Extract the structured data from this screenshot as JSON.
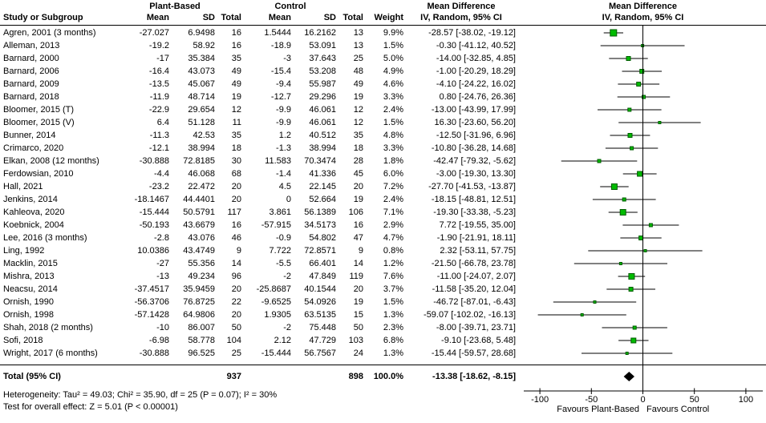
{
  "header": {
    "study_col": "Study or Subgroup",
    "group1": "Plant-Based",
    "group2": "Control",
    "mean": "Mean",
    "sd": "SD",
    "total": "Total",
    "weight": "Weight",
    "md_title": "Mean Difference",
    "md_method": "IV, Random, 95% CI"
  },
  "footnotes": {
    "heterogeneity": "Heterogeneity: Tau² = 49.03; Chi² = 35.90, df = 25 (P = 0.07); I² = 30%",
    "overall_effect": "Test for overall effect: Z = 5.01 (P < 0.00001)"
  },
  "chart_data": {
    "type": "forest",
    "effect_measure": "Mean Difference",
    "model": "IV, Random, 95% CI",
    "xlim": [
      -116,
      117
    ],
    "axis": {
      "ticks": [
        -100,
        -50,
        0,
        50,
        100
      ],
      "favours_left": "Favours Plant-Based",
      "favours_right": "Favours Control"
    },
    "colors": {
      "square": "#00bb00",
      "square_border": "#005c00",
      "diamond": "#000000",
      "line": "#000000"
    },
    "studies": [
      {
        "name": "Agren, 2001 (3 months)",
        "pb_mean": "-27.027",
        "pb_sd": "6.9498",
        "pb_total": "16",
        "c_mean": "1.5444",
        "c_sd": "16.2162",
        "c_total": "13",
        "weight": "9.9%",
        "ci": "-28.57 [-38.02, -19.12]",
        "est": -28.57,
        "lo": -38.02,
        "hi": -19.12,
        "w": 9.9
      },
      {
        "name": "Alleman, 2013",
        "pb_mean": "-19.2",
        "pb_sd": "58.92",
        "pb_total": "16",
        "c_mean": "-18.9",
        "c_sd": "53.091",
        "c_total": "13",
        "weight": "1.5%",
        "ci": "-0.30 [-41.12, 40.52]",
        "est": -0.3,
        "lo": -41.12,
        "hi": 40.52,
        "w": 1.5
      },
      {
        "name": "Barnard, 2000",
        "pb_mean": "-17",
        "pb_sd": "35.384",
        "pb_total": "35",
        "c_mean": "-3",
        "c_sd": "37.643",
        "c_total": "25",
        "weight": "5.0%",
        "ci": "-14.00 [-32.85, 4.85]",
        "est": -14.0,
        "lo": -32.85,
        "hi": 4.85,
        "w": 5.0
      },
      {
        "name": "Barnard, 2006",
        "pb_mean": "-16.4",
        "pb_sd": "43.073",
        "pb_total": "49",
        "c_mean": "-15.4",
        "c_sd": "53.208",
        "c_total": "48",
        "weight": "4.9%",
        "ci": "-1.00 [-20.29, 18.29]",
        "est": -1.0,
        "lo": -20.29,
        "hi": 18.29,
        "w": 4.9
      },
      {
        "name": "Barnard, 2009",
        "pb_mean": "-13.5",
        "pb_sd": "45.067",
        "pb_total": "49",
        "c_mean": "-9.4",
        "c_sd": "55.987",
        "c_total": "49",
        "weight": "4.6%",
        "ci": "-4.10 [-24.22, 16.02]",
        "est": -4.1,
        "lo": -24.22,
        "hi": 16.02,
        "w": 4.6
      },
      {
        "name": "Barnard, 2018",
        "pb_mean": "-11.9",
        "pb_sd": "48.714",
        "pb_total": "19",
        "c_mean": "-12.7",
        "c_sd": "29.296",
        "c_total": "19",
        "weight": "3.3%",
        "ci": "0.80 [-24.76, 26.36]",
        "est": 0.8,
        "lo": -24.76,
        "hi": 26.36,
        "w": 3.3
      },
      {
        "name": "Bloomer, 2015 (T)",
        "pb_mean": "-22.9",
        "pb_sd": "29.654",
        "pb_total": "12",
        "c_mean": "-9.9",
        "c_sd": "46.061",
        "c_total": "12",
        "weight": "2.4%",
        "ci": "-13.00 [-43.99, 17.99]",
        "est": -13.0,
        "lo": -43.99,
        "hi": 17.99,
        "w": 2.4
      },
      {
        "name": "Bloomer, 2015 (V)",
        "pb_mean": "6.4",
        "pb_sd": "51.128",
        "pb_total": "11",
        "c_mean": "-9.9",
        "c_sd": "46.061",
        "c_total": "12",
        "weight": "1.5%",
        "ci": "16.30 [-23.60, 56.20]",
        "est": 16.3,
        "lo": -23.6,
        "hi": 56.2,
        "w": 1.5
      },
      {
        "name": "Bunner, 2014",
        "pb_mean": "-11.3",
        "pb_sd": "42.53",
        "pb_total": "35",
        "c_mean": "1.2",
        "c_sd": "40.512",
        "c_total": "35",
        "weight": "4.8%",
        "ci": "-12.50 [-31.96, 6.96]",
        "est": -12.5,
        "lo": -31.96,
        "hi": 6.96,
        "w": 4.8
      },
      {
        "name": "Crimarco, 2020",
        "pb_mean": "-12.1",
        "pb_sd": "38.994",
        "pb_total": "18",
        "c_mean": "-1.3",
        "c_sd": "38.994",
        "c_total": "18",
        "weight": "3.3%",
        "ci": "-10.80 [-36.28, 14.68]",
        "est": -10.8,
        "lo": -36.28,
        "hi": 14.68,
        "w": 3.3
      },
      {
        "name": "Elkan, 2008 (12 months)",
        "pb_mean": "-30.888",
        "pb_sd": "72.8185",
        "pb_total": "30",
        "c_mean": "11.583",
        "c_sd": "70.3474",
        "c_total": "28",
        "weight": "1.8%",
        "ci": "-42.47 [-79.32, -5.62]",
        "est": -42.47,
        "lo": -79.32,
        "hi": -5.62,
        "w": 1.8
      },
      {
        "name": "Ferdowsian, 2010",
        "pb_mean": "-4.4",
        "pb_sd": "46.068",
        "pb_total": "68",
        "c_mean": "-1.4",
        "c_sd": "41.336",
        "c_total": "45",
        "weight": "6.0%",
        "ci": "-3.00 [-19.30, 13.30]",
        "est": -3.0,
        "lo": -19.3,
        "hi": 13.3,
        "w": 6.0
      },
      {
        "name": "Hall, 2021",
        "pb_mean": "-23.2",
        "pb_sd": "22.472",
        "pb_total": "20",
        "c_mean": "4.5",
        "c_sd": "22.145",
        "c_total": "20",
        "weight": "7.2%",
        "ci": "-27.70 [-41.53, -13.87]",
        "est": -27.7,
        "lo": -41.53,
        "hi": -13.87,
        "w": 7.2
      },
      {
        "name": "Jenkins, 2014",
        "pb_mean": "-18.1467",
        "pb_sd": "44.4401",
        "pb_total": "20",
        "c_mean": "0",
        "c_sd": "52.664",
        "c_total": "19",
        "weight": "2.4%",
        "ci": "-18.15 [-48.81, 12.51]",
        "est": -18.15,
        "lo": -48.81,
        "hi": 12.51,
        "w": 2.4
      },
      {
        "name": "Kahleova, 2020",
        "pb_mean": "-15.444",
        "pb_sd": "50.5791",
        "pb_total": "117",
        "c_mean": "3.861",
        "c_sd": "56.1389",
        "c_total": "106",
        "weight": "7.1%",
        "ci": "-19.30 [-33.38, -5.23]",
        "est": -19.3,
        "lo": -33.38,
        "hi": -5.23,
        "w": 7.1
      },
      {
        "name": "Koebnick, 2004",
        "pb_mean": "-50.193",
        "pb_sd": "43.6679",
        "pb_total": "16",
        "c_mean": "-57.915",
        "c_sd": "34.5173",
        "c_total": "16",
        "weight": "2.9%",
        "ci": "7.72 [-19.55, 35.00]",
        "est": 7.72,
        "lo": -19.55,
        "hi": 35.0,
        "w": 2.9
      },
      {
        "name": "Lee, 2016 (3 months)",
        "pb_mean": "-2.8",
        "pb_sd": "43.076",
        "pb_total": "46",
        "c_mean": "-0.9",
        "c_sd": "54.802",
        "c_total": "47",
        "weight": "4.7%",
        "ci": "-1.90 [-21.91, 18.11]",
        "est": -1.9,
        "lo": -21.91,
        "hi": 18.11,
        "w": 4.7
      },
      {
        "name": "Ling, 1992",
        "pb_mean": "10.0386",
        "pb_sd": "43.4749",
        "pb_total": "9",
        "c_mean": "7.722",
        "c_sd": "72.8571",
        "c_total": "9",
        "weight": "0.8%",
        "ci": "2.32 [-53.11, 57.75]",
        "est": 2.32,
        "lo": -53.11,
        "hi": 57.75,
        "w": 0.8
      },
      {
        "name": "Macklin, 2015",
        "pb_mean": "-27",
        "pb_sd": "55.356",
        "pb_total": "14",
        "c_mean": "-5.5",
        "c_sd": "66.401",
        "c_total": "14",
        "weight": "1.2%",
        "ci": "-21.50 [-66.78, 23.78]",
        "est": -21.5,
        "lo": -66.78,
        "hi": 23.78,
        "w": 1.2
      },
      {
        "name": "Mishra, 2013",
        "pb_mean": "-13",
        "pb_sd": "49.234",
        "pb_total": "96",
        "c_mean": "-2",
        "c_sd": "47.849",
        "c_total": "119",
        "weight": "7.6%",
        "ci": "-11.00 [-24.07, 2.07]",
        "est": -11.0,
        "lo": -24.07,
        "hi": 2.07,
        "w": 7.6
      },
      {
        "name": "Neacsu, 2014",
        "pb_mean": "-37.4517",
        "pb_sd": "35.9459",
        "pb_total": "20",
        "c_mean": "-25.8687",
        "c_sd": "40.1544",
        "c_total": "20",
        "weight": "3.7%",
        "ci": "-11.58 [-35.20, 12.04]",
        "est": -11.58,
        "lo": -35.2,
        "hi": 12.04,
        "w": 3.7
      },
      {
        "name": "Ornish, 1990",
        "pb_mean": "-56.3706",
        "pb_sd": "76.8725",
        "pb_total": "22",
        "c_mean": "-9.6525",
        "c_sd": "54.0926",
        "c_total": "19",
        "weight": "1.5%",
        "ci": "-46.72 [-87.01, -6.43]",
        "est": -46.72,
        "lo": -87.01,
        "hi": -6.43,
        "w": 1.5
      },
      {
        "name": "Ornish, 1998",
        "pb_mean": "-57.1428",
        "pb_sd": "64.9806",
        "pb_total": "20",
        "c_mean": "1.9305",
        "c_sd": "63.5135",
        "c_total": "15",
        "weight": "1.3%",
        "ci": "-59.07 [-102.02, -16.13]",
        "est": -59.07,
        "lo": -102.02,
        "hi": -16.13,
        "w": 1.3
      },
      {
        "name": "Shah, 2018 (2 months)",
        "pb_mean": "-10",
        "pb_sd": "86.007",
        "pb_total": "50",
        "c_mean": "-2",
        "c_sd": "75.448",
        "c_total": "50",
        "weight": "2.3%",
        "ci": "-8.00 [-39.71, 23.71]",
        "est": -8.0,
        "lo": -39.71,
        "hi": 23.71,
        "w": 2.3
      },
      {
        "name": "Sofi, 2018",
        "pb_mean": "-6.98",
        "pb_sd": "58.778",
        "pb_total": "104",
        "c_mean": "2.12",
        "c_sd": "47.729",
        "c_total": "103",
        "weight": "6.8%",
        "ci": "-9.10 [-23.68, 5.48]",
        "est": -9.1,
        "lo": -23.68,
        "hi": 5.48,
        "w": 6.8
      },
      {
        "name": "Wright, 2017 (6 months)",
        "pb_mean": "-30.888",
        "pb_sd": "96.525",
        "pb_total": "25",
        "c_mean": "-15.444",
        "c_sd": "56.7567",
        "c_total": "24",
        "weight": "1.3%",
        "ci": "-15.44 [-59.57, 28.68]",
        "est": -15.44,
        "lo": -59.57,
        "hi": 28.68,
        "w": 1.3
      }
    ],
    "total": {
      "label": "Total (95% CI)",
      "pb_total": "937",
      "c_total": "898",
      "weight": "100.0%",
      "ci": "-13.38 [-18.62, -8.15]",
      "est": -13.38,
      "lo": -18.62,
      "hi": -8.15
    }
  }
}
